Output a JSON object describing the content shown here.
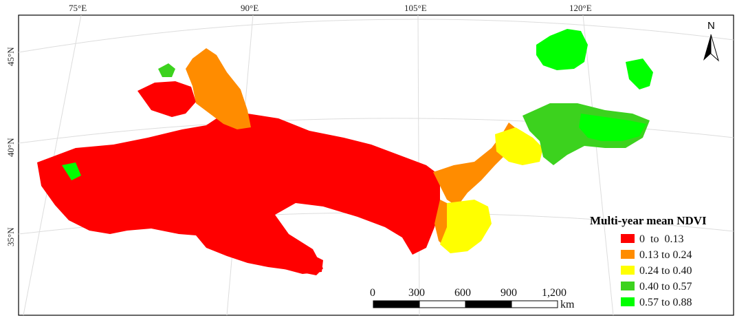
{
  "map": {
    "longitude_labels": [
      "75°E",
      "90°E",
      "105°E",
      "120°E"
    ],
    "latitude_labels": [
      "45°N",
      "40°N",
      "35°N"
    ],
    "north_arrow": {
      "label": "N",
      "icon": "north-arrow-icon"
    },
    "scale_bar": {
      "ticks": [
        "0",
        "300",
        "600",
        "900",
        "1,200"
      ],
      "unit": "km"
    },
    "legend": {
      "title": "Multi-year mean NDVI",
      "classes": [
        {
          "label": "0  to  0.13",
          "color": "#ff0000"
        },
        {
          "label": "0.13 to 0.24",
          "color": "#ff8c00"
        },
        {
          "label": "0.24 to 0.40",
          "color": "#ffff00"
        },
        {
          "label": "0.40 to 0.57",
          "color": "#3cd21e"
        },
        {
          "label": "0.57 to 0.88",
          "color": "#00ff00"
        }
      ]
    }
  }
}
